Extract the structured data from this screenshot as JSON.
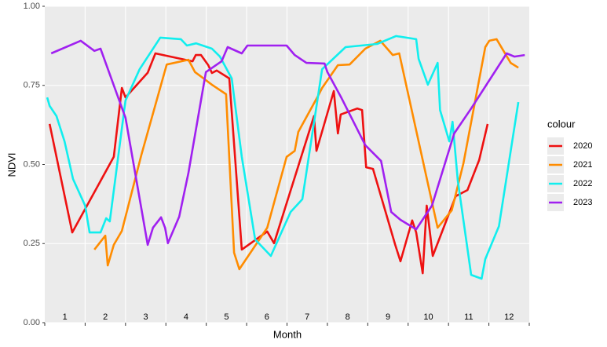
{
  "chart_data": {
    "type": "line",
    "xlabel": "Month",
    "ylabel": "NDVI",
    "legend_title": "colour",
    "legend": "right",
    "grid": true,
    "xlim": [
      0,
      12
    ],
    "xticks": [
      0,
      1,
      2,
      3,
      4,
      5,
      6,
      7,
      8,
      9,
      10,
      11,
      12
    ],
    "month_labels": [
      {
        "value": 0.5,
        "label": "1"
      },
      {
        "value": 1.5,
        "label": "2"
      },
      {
        "value": 2.5,
        "label": "3"
      },
      {
        "value": 3.5,
        "label": "4"
      },
      {
        "value": 4.5,
        "label": "5"
      },
      {
        "value": 5.5,
        "label": "6"
      },
      {
        "value": 6.5,
        "label": "7"
      },
      {
        "value": 7.5,
        "label": "8"
      },
      {
        "value": 8.5,
        "label": "9"
      },
      {
        "value": 9.5,
        "label": "10"
      },
      {
        "value": 10.5,
        "label": "11"
      },
      {
        "value": 11.5,
        "label": "12"
      }
    ],
    "ylim": [
      0,
      1
    ],
    "yticks": [
      {
        "value": 0,
        "label": "0.00"
      },
      {
        "value": 0.25,
        "label": "0.25"
      },
      {
        "value": 0.5,
        "label": "0.50"
      },
      {
        "value": 0.75,
        "label": "0.75"
      },
      {
        "value": 1,
        "label": "1.00"
      }
    ],
    "series": [
      {
        "name": "2020",
        "color": "#ee1111",
        "x": [
          0.12,
          0.68,
          1.71,
          1.91,
          2.0,
          2.55,
          2.74,
          3.66,
          3.74,
          3.87,
          4.05,
          4.14,
          4.26,
          4.57,
          4.88,
          5.51,
          5.68,
          6.67,
          6.73,
          7.16,
          7.26,
          7.33,
          7.74,
          7.86,
          7.96,
          8.13,
          8.68,
          8.81,
          9.1,
          9.2,
          9.36,
          9.46,
          9.61,
          10.18,
          10.47,
          10.76,
          10.97
        ],
        "values": [
          0.628,
          0.285,
          0.524,
          0.742,
          0.712,
          0.79,
          0.851,
          0.826,
          0.846,
          0.846,
          0.814,
          0.789,
          0.797,
          0.772,
          0.231,
          0.288,
          0.251,
          0.653,
          0.543,
          0.732,
          0.598,
          0.658,
          0.677,
          0.672,
          0.491,
          0.486,
          0.246,
          0.194,
          0.323,
          0.285,
          0.156,
          0.37,
          0.211,
          0.4,
          0.419,
          0.514,
          0.628
        ]
      },
      {
        "name": "2021",
        "color": "#ff8c00",
        "x": [
          1.23,
          1.5,
          1.56,
          1.71,
          1.91,
          2.39,
          3.02,
          3.56,
          3.72,
          4.14,
          4.49,
          4.69,
          4.82,
          5.51,
          5.99,
          6.19,
          6.28,
          6.77,
          6.87,
          7.26,
          7.55,
          7.94,
          8.31,
          8.62,
          8.78,
          9.73,
          10.08,
          10.37,
          10.91,
          11.01,
          11.19,
          11.54,
          11.73
        ],
        "values": [
          0.231,
          0.275,
          0.181,
          0.246,
          0.29,
          0.529,
          0.816,
          0.831,
          0.792,
          0.752,
          0.722,
          0.221,
          0.169,
          0.3,
          0.524,
          0.543,
          0.603,
          0.717,
          0.742,
          0.814,
          0.816,
          0.866,
          0.891,
          0.846,
          0.851,
          0.3,
          0.355,
          0.504,
          0.871,
          0.891,
          0.896,
          0.821,
          0.806
        ]
      },
      {
        "name": "2022",
        "color": "#11eeee",
        "x": [
          0.06,
          0.12,
          0.29,
          0.49,
          0.7,
          1.0,
          1.11,
          1.38,
          1.52,
          1.61,
          2.0,
          2.35,
          2.86,
          3.37,
          3.52,
          3.75,
          4.14,
          4.34,
          4.63,
          4.88,
          5.21,
          5.6,
          6.09,
          6.38,
          6.87,
          7.45,
          7.84,
          8.23,
          8.7,
          9.2,
          9.26,
          9.49,
          9.73,
          9.79,
          10.02,
          10.1,
          10.23,
          10.56,
          10.82,
          10.91,
          11.25,
          11.73
        ],
        "values": [
          0.712,
          0.685,
          0.653,
          0.573,
          0.454,
          0.37,
          0.285,
          0.285,
          0.33,
          0.32,
          0.702,
          0.801,
          0.901,
          0.896,
          0.876,
          0.883,
          0.866,
          0.841,
          0.772,
          0.524,
          0.263,
          0.211,
          0.35,
          0.39,
          0.801,
          0.871,
          0.876,
          0.881,
          0.906,
          0.896,
          0.834,
          0.752,
          0.821,
          0.672,
          0.573,
          0.635,
          0.449,
          0.151,
          0.139,
          0.201,
          0.305,
          0.697
        ]
      },
      {
        "name": "2023",
        "color": "#a020f0",
        "x": [
          0.16,
          0.89,
          1.23,
          1.38,
          2.0,
          2.55,
          2.68,
          2.88,
          2.98,
          3.05,
          3.33,
          3.56,
          3.99,
          4.38,
          4.53,
          4.88,
          5.02,
          5.99,
          6.19,
          6.48,
          6.93,
          7.0,
          7.35,
          7.94,
          8.33,
          8.58,
          8.81,
          9.2,
          9.59,
          10.14,
          10.56,
          11.44,
          11.63,
          11.89
        ],
        "values": [
          0.851,
          0.891,
          0.859,
          0.866,
          0.648,
          0.246,
          0.3,
          0.333,
          0.3,
          0.251,
          0.335,
          0.474,
          0.792,
          0.826,
          0.871,
          0.851,
          0.876,
          0.876,
          0.846,
          0.821,
          0.819,
          0.792,
          0.71,
          0.561,
          0.511,
          0.35,
          0.325,
          0.295,
          0.37,
          0.598,
          0.677,
          0.851,
          0.841,
          0.846
        ]
      }
    ]
  }
}
